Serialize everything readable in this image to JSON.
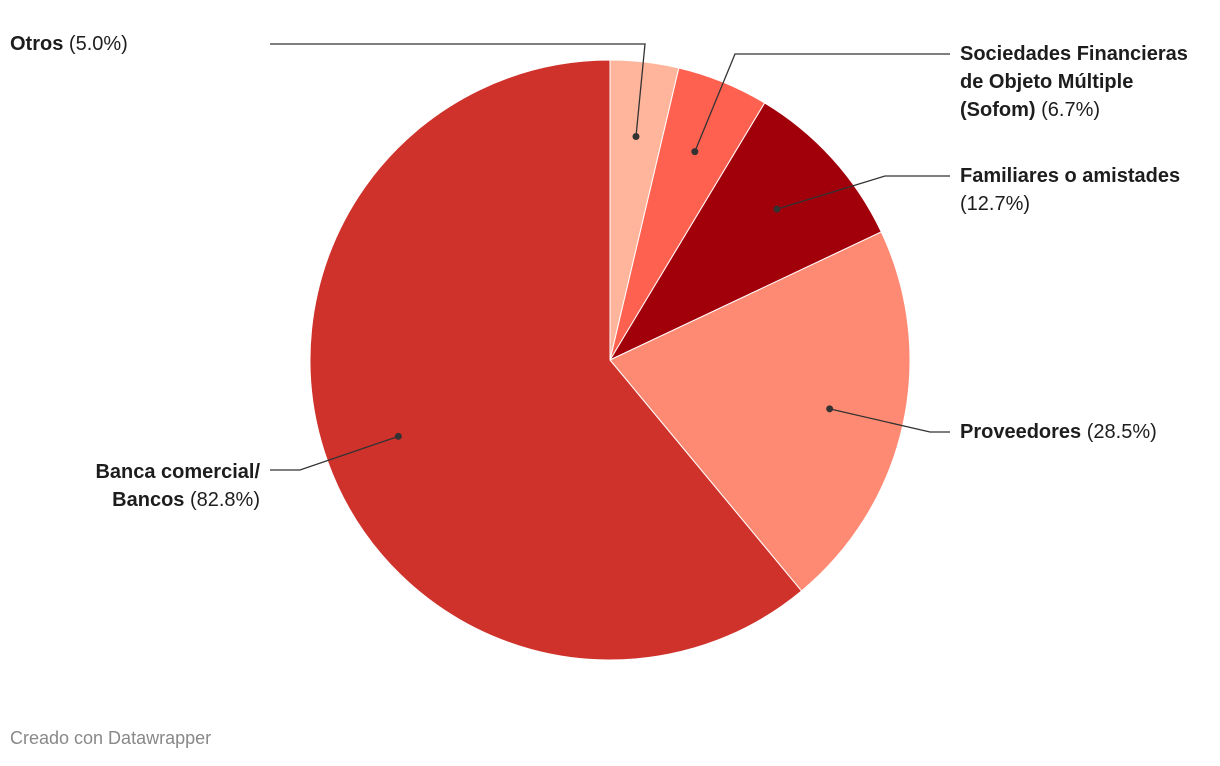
{
  "chart_data": {
    "type": "pie",
    "categories": [
      "Otros",
      "Sociedades Financieras de Objeto Múltiple (Sofom)",
      "Familiares o amistades",
      "Proveedores",
      "Banca comercial/ Bancos"
    ],
    "values": [
      5.0,
      6.7,
      12.7,
      28.5,
      82.8
    ],
    "value_labels": [
      "(5.0%)",
      "(6.7%)",
      "(12.7%)",
      "(28.5%)",
      "(82.8%)"
    ],
    "colors": [
      "#ffb59b",
      "#ff6150",
      "#a1000b",
      "#ff8a73",
      "#cf312b"
    ],
    "source": "Creado con Datawrapper"
  }
}
